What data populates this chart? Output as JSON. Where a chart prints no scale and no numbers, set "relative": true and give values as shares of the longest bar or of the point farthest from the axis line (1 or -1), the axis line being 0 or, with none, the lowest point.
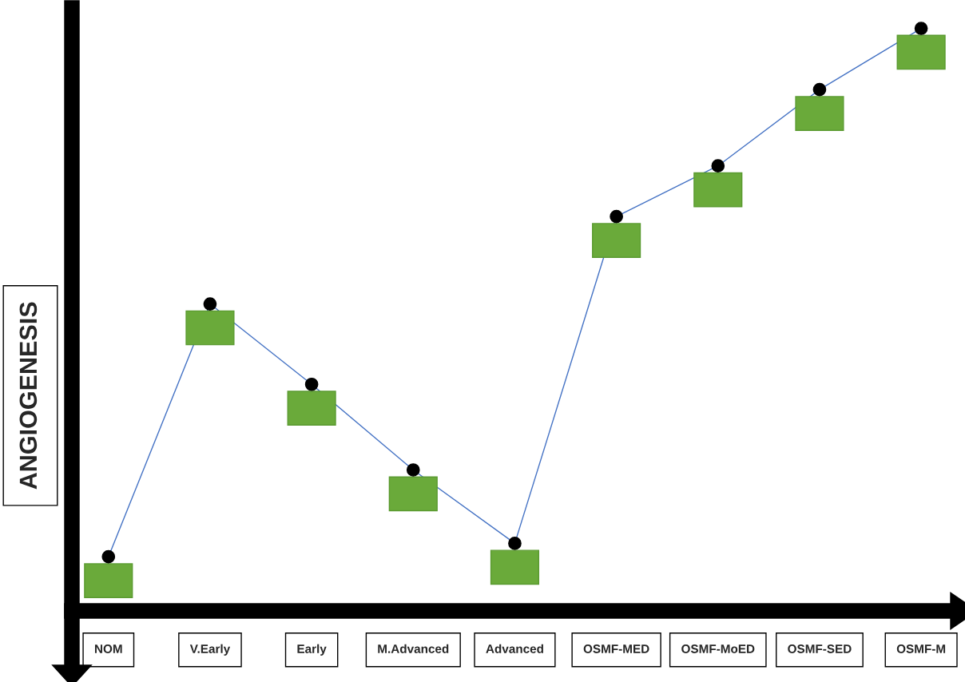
{
  "chart_data": {
    "type": "line",
    "relative": true,
    "ylabel": "ANGIOGENESIS",
    "categories": [
      "NOM",
      "V.Early",
      "Early",
      "M.Advanced",
      "Advanced",
      "OSMF-MED",
      "OSMF-MoED",
      "OSMF-SED",
      "OSMF-M"
    ],
    "series": [
      {
        "color": "#4472c4",
        "values": [
          0.093,
          0.527,
          0.389,
          0.242,
          0.116,
          0.677,
          0.764,
          0.895,
          1
        ]
      }
    ],
    "marker": "circle",
    "line_style": "solid",
    "grid": false,
    "legend": false,
    "tick_labels": "x"
  }
}
